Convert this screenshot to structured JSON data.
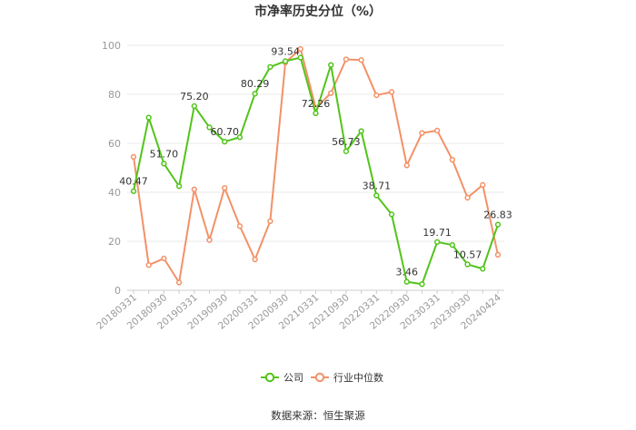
{
  "chart_data": {
    "type": "line",
    "title": "市净率历史分位（%）",
    "source": "数据来源：恒生聚源",
    "ylim": [
      0,
      100
    ],
    "yticks": [
      0,
      20,
      40,
      60,
      80,
      100
    ],
    "grid": true,
    "legend_position": "bottom",
    "x": [
      "20180331",
      "20180630",
      "20180930",
      "20181231",
      "20190331",
      "20190630",
      "20190930",
      "20191231",
      "20200331",
      "20200630",
      "20200930",
      "20201231",
      "20210331",
      "20210630",
      "20210930",
      "20211231",
      "20220331",
      "20220630",
      "20220930",
      "20221231",
      "20230331",
      "20230630",
      "20230930",
      "20231231",
      "20240424"
    ],
    "xtick_labels": [
      "20180331",
      "20180930",
      "20190331",
      "20190930",
      "20200331",
      "20200930",
      "20210331",
      "20210930",
      "20220331",
      "20220930",
      "20230331",
      "20230930",
      "20240424"
    ],
    "series": [
      {
        "name": "公司",
        "color": "#52c41a",
        "values": [
          40.47,
          70.5,
          51.7,
          42.5,
          75.2,
          66.5,
          60.7,
          62.5,
          80.29,
          91.2,
          93.54,
          95.0,
          72.26,
          92.0,
          56.73,
          65.0,
          38.71,
          31.0,
          3.46,
          2.5,
          19.71,
          18.5,
          10.57,
          8.8,
          26.83
        ],
        "labels": [
          "40.47",
          "",
          "51.70",
          "",
          "75.20",
          "",
          "60.70",
          "",
          "80.29",
          "",
          "93.54",
          "",
          "72.26",
          "",
          "56.73",
          "",
          "38.71",
          "",
          "3.46",
          "",
          "19.71",
          "",
          "10.57",
          "",
          "26.83"
        ]
      },
      {
        "name": "行业中位数",
        "color": "#f39167",
        "values": [
          54.5,
          10.3,
          13.0,
          3.2,
          41.2,
          20.5,
          41.8,
          26.2,
          12.6,
          28.2,
          93.0,
          98.5,
          74.5,
          80.5,
          94.3,
          94.0,
          79.6,
          81.0,
          51.0,
          64.2,
          65.2,
          53.3,
          37.8,
          43.0,
          14.5
        ]
      }
    ]
  }
}
